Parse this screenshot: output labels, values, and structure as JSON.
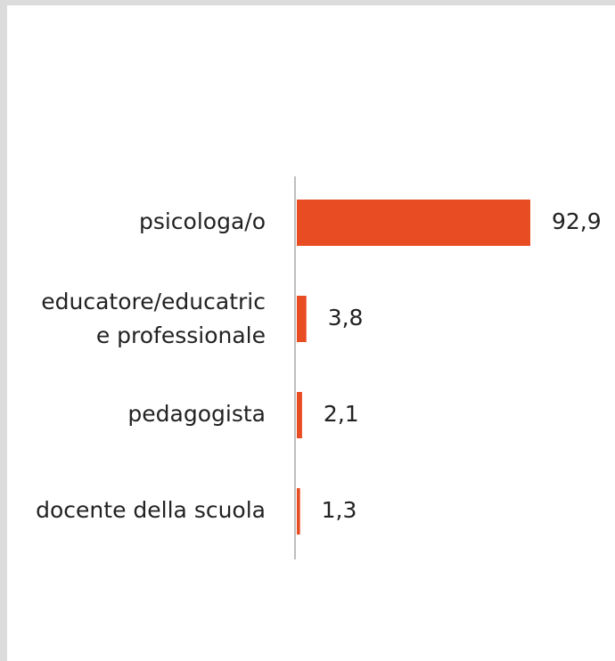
{
  "chart_data": {
    "type": "barh",
    "categories": [
      "psicologa/o",
      "educatore/educatrice professionale",
      "pedagogista",
      "docente della scuola"
    ],
    "values": [
      92.9,
      3.8,
      2.1,
      1.3
    ],
    "value_labels": [
      "92,9",
      "3,8",
      "2,1",
      "1,3"
    ],
    "color": "#e84c22",
    "xlim": [
      0,
      100
    ]
  }
}
